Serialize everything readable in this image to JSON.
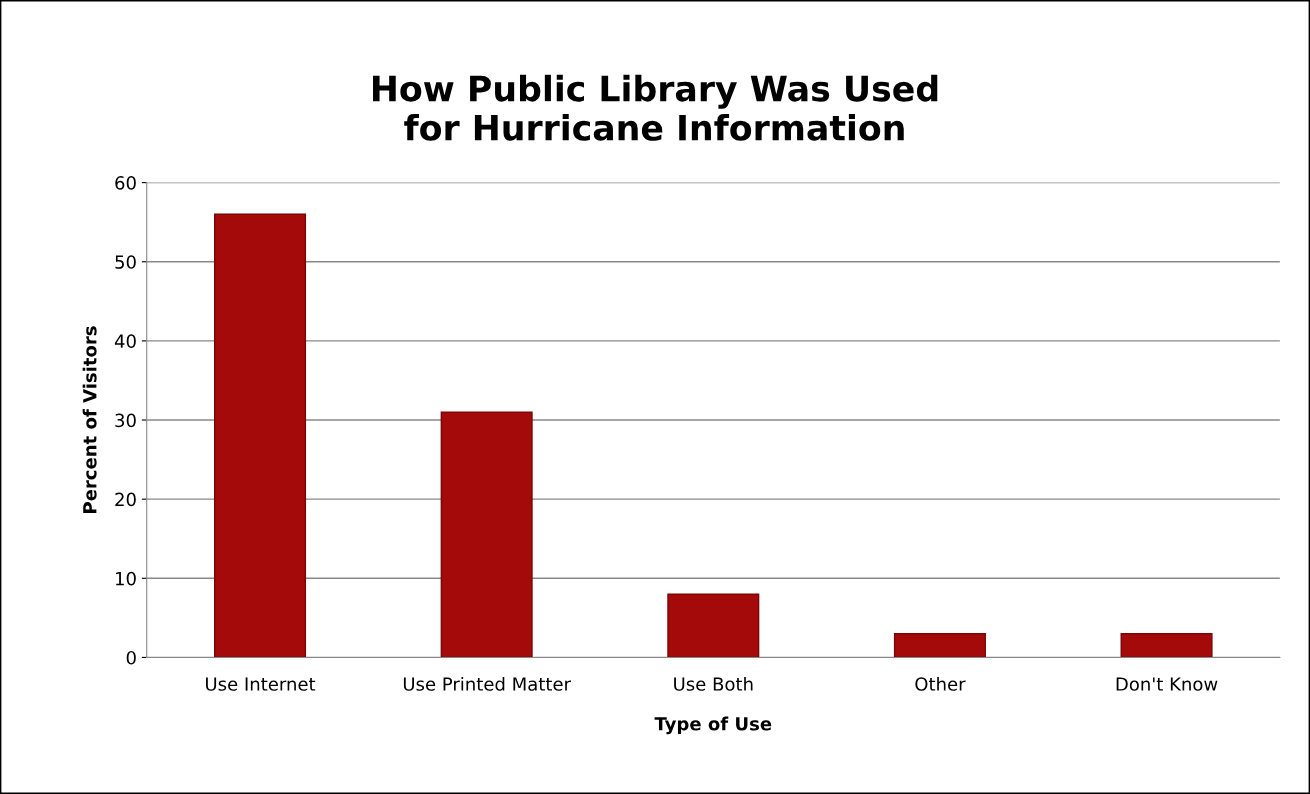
{
  "chart_data": {
    "type": "bar",
    "title": "How Public Library Was Used\nfor Hurricane Information",
    "xlabel": "Type of Use",
    "ylabel": "Percent of Visitors",
    "categories": [
      "Use Internet",
      "Use Printed Matter",
      "Use Both",
      "Other",
      "Don't Know"
    ],
    "values": [
      56,
      31,
      8,
      3,
      3
    ],
    "color": "#a50a0a",
    "ylim": [
      0,
      60
    ],
    "yticks": [
      0,
      10,
      20,
      30,
      40,
      50,
      60
    ],
    "grid": "y",
    "legend": false
  }
}
